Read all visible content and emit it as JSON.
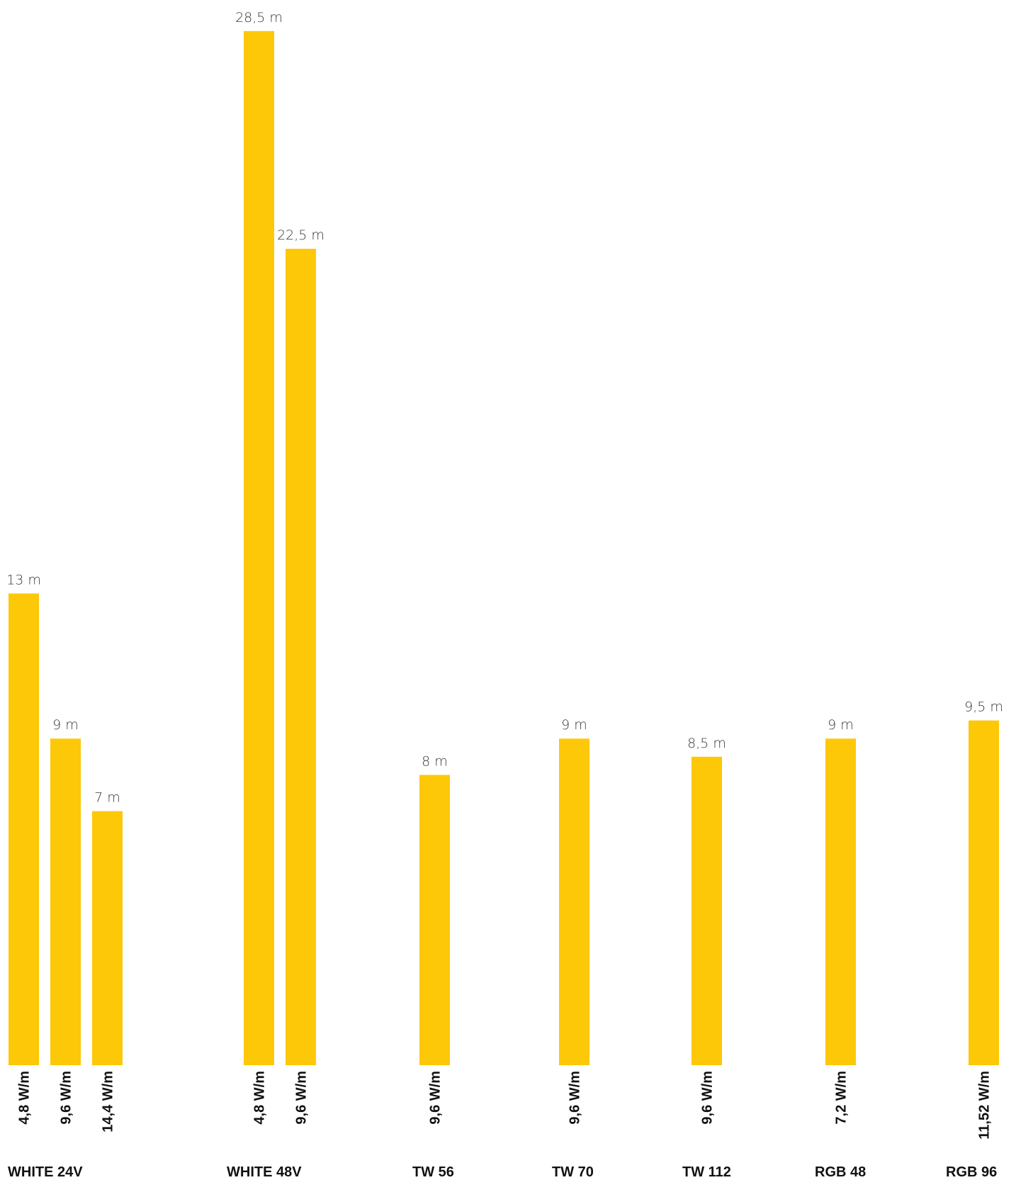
{
  "chart_data": {
    "type": "bar",
    "bar_color": "#FDC807",
    "value_unit": "m",
    "groups": [
      {
        "name": "WHITE 24V",
        "bars": [
          {
            "wattage": "4,8 W/m",
            "value": 13,
            "label": "13 m"
          },
          {
            "wattage": "9,6 W/m",
            "value": 9,
            "label": "9 m"
          },
          {
            "wattage": "14,4 W/m",
            "value": 7,
            "label": "7 m"
          }
        ]
      },
      {
        "name": "WHITE 48V",
        "bars": [
          {
            "wattage": "4,8 W/m",
            "value": 28.5,
            "label": "28,5 m"
          },
          {
            "wattage": "9,6 W/m",
            "value": 22.5,
            "label": "22,5 m"
          }
        ]
      },
      {
        "name": "TW 56",
        "bars": [
          {
            "wattage": "9,6 W/m",
            "value": 8,
            "label": "8 m"
          }
        ]
      },
      {
        "name": "TW 70",
        "bars": [
          {
            "wattage": "9,6 W/m",
            "value": 9,
            "label": "9 m"
          }
        ]
      },
      {
        "name": "TW 112",
        "bars": [
          {
            "wattage": "9,6 W/m",
            "value": 8.5,
            "label": "8,5 m"
          }
        ]
      },
      {
        "name": "RGB 48",
        "bars": [
          {
            "wattage": "7,2 W/m",
            "value": 9,
            "label": "9 m"
          }
        ]
      },
      {
        "name": "RGB 96",
        "bars": [
          {
            "wattage": "11,52 W/m",
            "value": 9.5,
            "label": "9,5 m"
          }
        ]
      }
    ]
  }
}
